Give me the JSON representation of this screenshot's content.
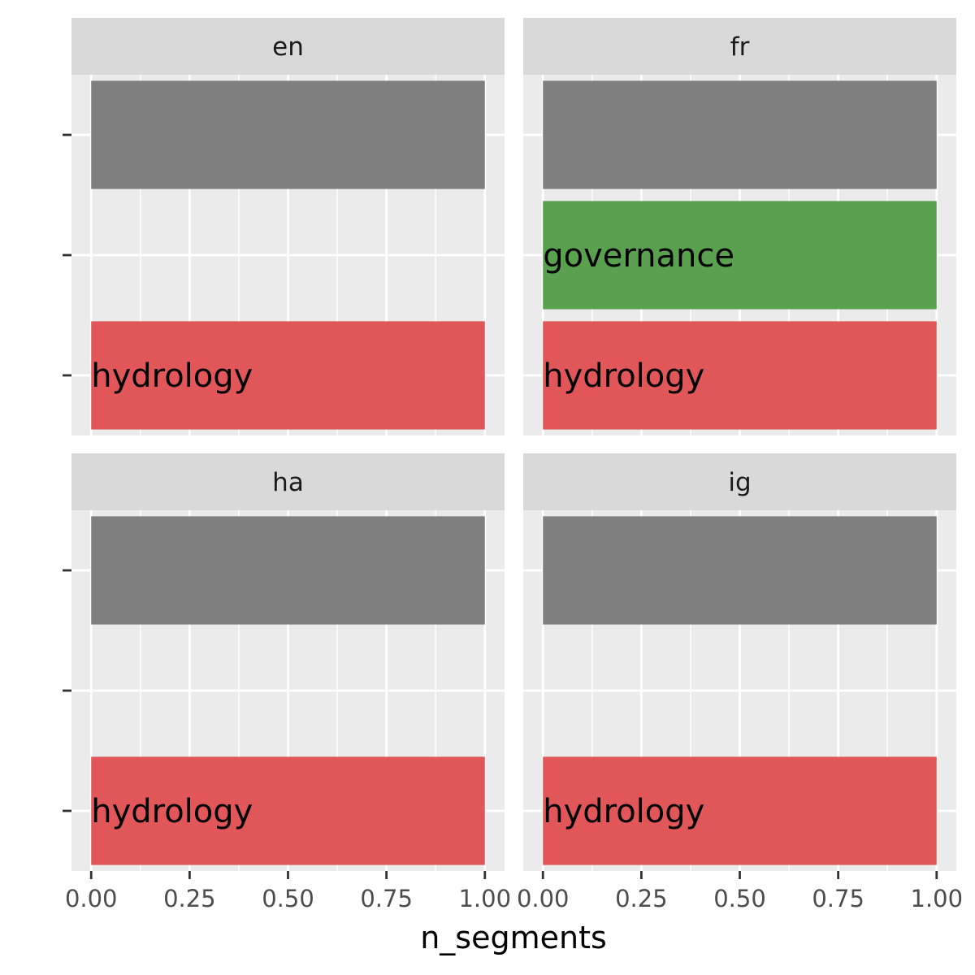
{
  "chart_data": {
    "type": "bar",
    "orientation": "horizontal",
    "xlabel": "n_segments",
    "ylabel": "",
    "xlim": [
      -0.05,
      1.05
    ],
    "x_ticks": [
      0,
      0.25,
      0.5,
      0.75,
      1
    ],
    "x_tick_labels": [
      "0.00",
      "0.25",
      "0.50",
      "0.75",
      "1.00"
    ],
    "grid": true,
    "legend": "none",
    "y_slots": 3,
    "colors": {
      "default": "#7f7f7f",
      "governance": "#59a14f",
      "hydrology": "#e15759"
    },
    "panels": [
      {
        "facet": "en",
        "bars": [
          {
            "slot": 0,
            "value": 1,
            "label": "",
            "color_key": "default"
          },
          {
            "slot": 2,
            "value": 1,
            "label": "hydrology",
            "color_key": "hydrology"
          }
        ]
      },
      {
        "facet": "fr",
        "bars": [
          {
            "slot": 0,
            "value": 1,
            "label": "",
            "color_key": "default"
          },
          {
            "slot": 1,
            "value": 1,
            "label": "governance",
            "color_key": "governance"
          },
          {
            "slot": 2,
            "value": 1,
            "label": "hydrology",
            "color_key": "hydrology"
          }
        ]
      },
      {
        "facet": "ha",
        "bars": [
          {
            "slot": 0,
            "value": 1,
            "label": "",
            "color_key": "default"
          },
          {
            "slot": 2,
            "value": 1,
            "label": "hydrology",
            "color_key": "hydrology"
          }
        ]
      },
      {
        "facet": "ig",
        "bars": [
          {
            "slot": 0,
            "value": 1,
            "label": "",
            "color_key": "default"
          },
          {
            "slot": 2,
            "value": 1,
            "label": "hydrology",
            "color_key": "hydrology"
          }
        ]
      }
    ]
  }
}
